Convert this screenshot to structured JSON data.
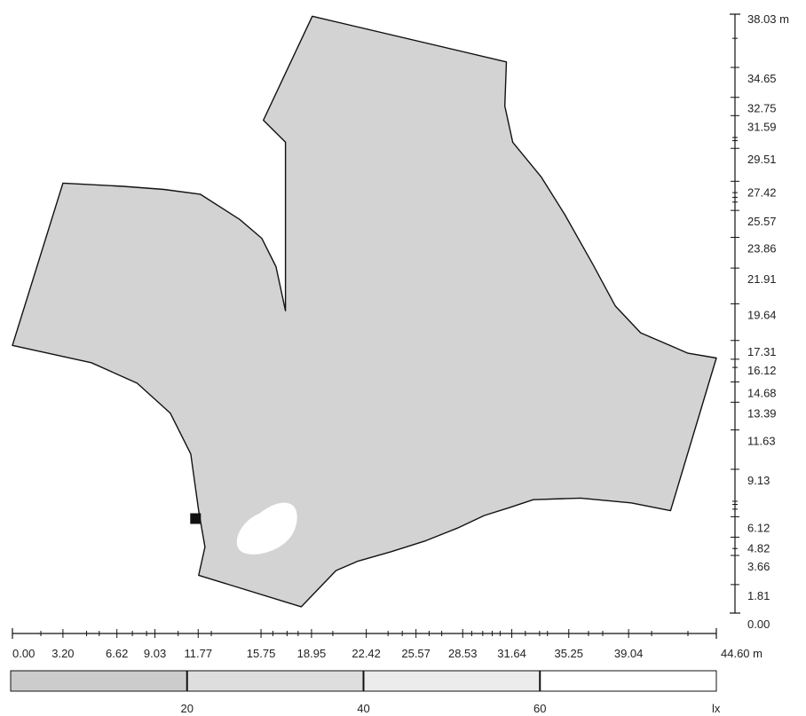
{
  "units": {
    "x_unit_label": "44.60 m",
    "y_unit_label": "38.03 m",
    "lux_unit_label": "lx"
  },
  "x_axis": {
    "min": 0,
    "max": 44.6,
    "labeled_ticks": [
      {
        "value": 0.0,
        "label": "0.00"
      },
      {
        "value": 3.2,
        "label": "3.20"
      },
      {
        "value": 6.62,
        "label": "6.62"
      },
      {
        "value": 9.03,
        "label": "9.03"
      },
      {
        "value": 11.77,
        "label": "11.77"
      },
      {
        "value": 15.75,
        "label": "15.75"
      },
      {
        "value": 18.95,
        "label": "18.95"
      },
      {
        "value": 22.42,
        "label": "22.42"
      },
      {
        "value": 25.57,
        "label": "25.57"
      },
      {
        "value": 28.53,
        "label": "28.53"
      },
      {
        "value": 31.64,
        "label": "31.64"
      },
      {
        "value": 35.25,
        "label": "35.25"
      },
      {
        "value": 39.04,
        "label": "39.04"
      }
    ],
    "minor_ticks": [
      1.8,
      4.7,
      5.5,
      7.6,
      8.5,
      10.5,
      12.6,
      16.5,
      17.4,
      18.1,
      20.3,
      23.8,
      24.7,
      26.4,
      27.2,
      29.1,
      29.8,
      30.4,
      30.9,
      32.5,
      33.4,
      33.9,
      36.5,
      37.4,
      40.5,
      42.8
    ]
  },
  "y_axis": {
    "min": 0,
    "max": 38.03,
    "labeled_ticks": [
      {
        "value": 0.0,
        "label": "0.00"
      },
      {
        "value": 1.81,
        "label": "1.81"
      },
      {
        "value": 3.66,
        "label": "3.66"
      },
      {
        "value": 4.82,
        "label": "4.82"
      },
      {
        "value": 6.12,
        "label": "6.12"
      },
      {
        "value": 9.13,
        "label": "9.13"
      },
      {
        "value": 11.63,
        "label": "11.63"
      },
      {
        "value": 13.39,
        "label": "13.39"
      },
      {
        "value": 14.68,
        "label": "14.68"
      },
      {
        "value": 16.12,
        "label": "16.12"
      },
      {
        "value": 17.31,
        "label": "17.31"
      },
      {
        "value": 19.64,
        "label": "19.64"
      },
      {
        "value": 21.91,
        "label": "21.91"
      },
      {
        "value": 23.86,
        "label": "23.86"
      },
      {
        "value": 25.57,
        "label": "25.57"
      },
      {
        "value": 27.42,
        "label": "27.42"
      },
      {
        "value": 29.51,
        "label": "29.51"
      },
      {
        "value": 31.59,
        "label": "31.59"
      },
      {
        "value": 32.75,
        "label": "32.75"
      },
      {
        "value": 34.65,
        "label": "34.65"
      }
    ],
    "minor_ticks": [
      4.1,
      6.6,
      6.9,
      7.1,
      15.6,
      26.1,
      26.4,
      26.7,
      30.0,
      30.2,
      36.5
    ]
  },
  "room_outline": [
    [
      19.0,
      37.9
    ],
    [
      31.3,
      35.0
    ],
    [
      31.2,
      32.2
    ],
    [
      31.7,
      29.9
    ],
    [
      33.5,
      27.7
    ],
    [
      35.0,
      25.3
    ],
    [
      36.8,
      22.1
    ],
    [
      38.2,
      19.5
    ],
    [
      39.8,
      17.8
    ],
    [
      42.8,
      16.5
    ],
    [
      44.6,
      16.2
    ],
    [
      41.7,
      6.5
    ],
    [
      39.2,
      7.0
    ],
    [
      36.0,
      7.3
    ],
    [
      33.0,
      7.2
    ],
    [
      31.5,
      6.7
    ],
    [
      29.9,
      6.2
    ],
    [
      28.2,
      5.4
    ],
    [
      26.2,
      4.6
    ],
    [
      24.0,
      3.9
    ],
    [
      21.9,
      3.3
    ],
    [
      20.5,
      2.7
    ],
    [
      18.3,
      0.4
    ],
    [
      11.8,
      2.4
    ],
    [
      12.2,
      4.2
    ],
    [
      11.8,
      6.5
    ],
    [
      11.3,
      10.1
    ],
    [
      10.0,
      12.7
    ],
    [
      7.9,
      14.6
    ],
    [
      5.0,
      15.9
    ],
    [
      0.0,
      17.0
    ],
    [
      3.2,
      27.3
    ],
    [
      7.0,
      27.1
    ],
    [
      9.6,
      26.9
    ],
    [
      11.9,
      26.6
    ],
    [
      14.4,
      25.0
    ],
    [
      15.8,
      23.8
    ],
    [
      16.7,
      22.0
    ],
    [
      17.3,
      19.2
    ]
  ],
  "room_outline_fix": [
    [
      19.0,
      37.9
    ],
    [
      31.3,
      35.0
    ],
    [
      31.2,
      32.2
    ],
    [
      31.7,
      29.9
    ],
    [
      33.5,
      27.7
    ],
    [
      35.0,
      25.3
    ],
    [
      36.8,
      22.1
    ],
    [
      38.2,
      19.5
    ],
    [
      39.8,
      17.8
    ],
    [
      42.8,
      16.5
    ],
    [
      44.6,
      16.2
    ],
    [
      41.7,
      6.5
    ],
    [
      39.2,
      7.0
    ],
    [
      36.0,
      7.3
    ],
    [
      33.0,
      7.2
    ],
    [
      31.5,
      6.7
    ],
    [
      29.9,
      6.2
    ],
    [
      28.2,
      5.4
    ],
    [
      26.2,
      4.6
    ],
    [
      24.0,
      3.9
    ],
    [
      21.9,
      3.3
    ],
    [
      20.5,
      2.7
    ],
    [
      18.3,
      0.4
    ],
    [
      11.8,
      2.4
    ],
    [
      12.2,
      4.2
    ],
    [
      11.8,
      6.5
    ],
    [
      11.3,
      10.1
    ],
    [
      10.0,
      12.7
    ],
    [
      7.9,
      14.6
    ],
    [
      5.0,
      15.9
    ],
    [
      0.0,
      17.0
    ],
    [
      3.2,
      27.3
    ],
    [
      7.0,
      27.1
    ],
    [
      9.6,
      26.9
    ],
    [
      11.9,
      26.6
    ],
    [
      14.4,
      25.0
    ],
    [
      15.8,
      23.8
    ],
    [
      16.7,
      22.0
    ],
    [
      17.3,
      19.2
    ],
    [
      17.3,
      29.9
    ],
    [
      15.9,
      31.3
    ]
  ],
  "room_fill_color": "#d3d3d3",
  "room_stroke_color": "#111111",
  "low_light_area": {
    "center": [
      16.2,
      5.3
    ],
    "fill_color": "#ffffff"
  },
  "luminaire_marker": {
    "position": [
      11.6,
      6.0
    ],
    "color": "#111111"
  },
  "lux_legend": {
    "min": 0,
    "max": 80,
    "segments": [
      {
        "from": 0,
        "to": 20,
        "color": "#cccccc"
      },
      {
        "from": 20,
        "to": 40,
        "color": "#dedede"
      },
      {
        "from": 40,
        "to": 60,
        "color": "#ececec"
      },
      {
        "from": 60,
        "to": 80,
        "color": "#ffffff"
      }
    ],
    "labels": [
      {
        "value": 20,
        "label": "20"
      },
      {
        "value": 40,
        "label": "40"
      },
      {
        "value": 60,
        "label": "60"
      }
    ]
  }
}
